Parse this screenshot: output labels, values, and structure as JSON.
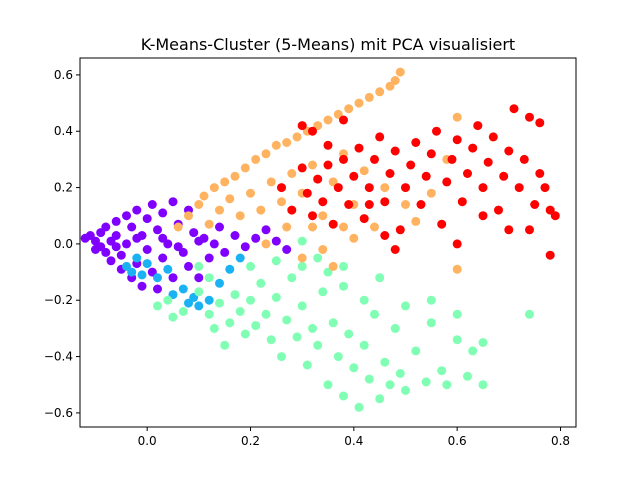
{
  "chart_data": {
    "type": "scatter",
    "title": "K-Means-Cluster (5-Means) mit PCA visualisiert",
    "xlabel": "",
    "ylabel": "",
    "xlim": [
      -0.13,
      0.83
    ],
    "ylim": [
      -0.65,
      0.66
    ],
    "x_ticks": [
      0.0,
      0.2,
      0.4,
      0.6,
      0.8
    ],
    "x_tick_labels": [
      "0.0",
      "0.2",
      "0.4",
      "0.6",
      "0.8"
    ],
    "y_ticks": [
      -0.6,
      -0.4,
      -0.2,
      0.0,
      0.2,
      0.4,
      0.6
    ],
    "y_tick_labels": [
      "−0.6",
      "−0.4",
      "−0.2",
      "0.0",
      "0.2",
      "0.4",
      "0.6"
    ],
    "grid": false,
    "legend": "none",
    "series": [
      {
        "color": "#8000ff",
        "points": [
          [
            -0.12,
            0.02
          ],
          [
            -0.11,
            0.03
          ],
          [
            -0.1,
            0.01
          ],
          [
            -0.1,
            -0.02
          ],
          [
            -0.09,
            0.04
          ],
          [
            -0.08,
            0.06
          ],
          [
            -0.08,
            -0.03
          ],
          [
            -0.07,
            0.01
          ],
          [
            -0.07,
            -0.06
          ],
          [
            -0.06,
            0.08
          ],
          [
            -0.06,
            0.03
          ],
          [
            -0.05,
            -0.04
          ],
          [
            -0.05,
            -0.09
          ],
          [
            -0.04,
            0.1
          ],
          [
            -0.04,
            0.0
          ],
          [
            -0.03,
            0.06
          ],
          [
            -0.03,
            -0.12
          ],
          [
            -0.02,
            0.12
          ],
          [
            -0.02,
            -0.07
          ],
          [
            -0.01,
            0.03
          ],
          [
            -0.01,
            -0.15
          ],
          [
            0.0,
            0.09
          ],
          [
            0.0,
            -0.02
          ],
          [
            0.01,
            0.14
          ],
          [
            0.01,
            -0.1
          ],
          [
            0.02,
            0.05
          ],
          [
            0.02,
            -0.16
          ],
          [
            0.03,
            0.11
          ],
          [
            0.03,
            -0.05
          ],
          [
            0.04,
            0.0
          ],
          [
            0.05,
            0.15
          ],
          [
            0.05,
            -0.12
          ],
          [
            0.06,
            0.07
          ],
          [
            0.07,
            -0.03
          ],
          [
            0.08,
            0.12
          ],
          [
            0.08,
            -0.08
          ],
          [
            0.09,
            0.04
          ],
          [
            0.1,
            -0.12
          ],
          [
            0.11,
            0.02
          ],
          [
            0.12,
            -0.05
          ],
          [
            0.13,
            0.0
          ],
          [
            0.14,
            0.06
          ],
          [
            0.15,
            -0.03
          ],
          [
            0.17,
            0.03
          ],
          [
            0.19,
            -0.01
          ],
          [
            0.21,
            0.02
          ],
          [
            0.23,
            0.05
          ],
          [
            0.25,
            0.01
          ],
          [
            0.27,
            -0.02
          ],
          [
            -0.09,
            -0.01
          ],
          [
            -0.06,
            -0.01
          ],
          [
            -0.02,
            0.02
          ],
          [
            0.03,
            0.02
          ],
          [
            0.06,
            -0.01
          ],
          [
            0.1,
            0.01
          ]
        ]
      },
      {
        "color": "#1ab2f2",
        "points": [
          [
            -0.04,
            -0.08
          ],
          [
            -0.03,
            -0.1
          ],
          [
            -0.02,
            -0.05
          ],
          [
            -0.01,
            -0.11
          ],
          [
            0.0,
            -0.07
          ],
          [
            0.02,
            -0.12
          ],
          [
            0.04,
            -0.09
          ],
          [
            0.05,
            -0.18
          ],
          [
            0.07,
            -0.16
          ],
          [
            0.08,
            -0.21
          ],
          [
            0.09,
            -0.19
          ],
          [
            0.1,
            -0.22
          ],
          [
            0.12,
            -0.2
          ],
          [
            0.14,
            -0.14
          ],
          [
            0.16,
            -0.09
          ],
          [
            0.18,
            -0.05
          ]
        ]
      },
      {
        "color": "#80ffb4",
        "points": [
          [
            0.02,
            -0.22
          ],
          [
            0.04,
            -0.2
          ],
          [
            0.05,
            -0.26
          ],
          [
            0.07,
            -0.24
          ],
          [
            0.1,
            -0.17
          ],
          [
            0.12,
            -0.25
          ],
          [
            0.13,
            -0.3
          ],
          [
            0.14,
            -0.21
          ],
          [
            0.15,
            -0.36
          ],
          [
            0.16,
            -0.28
          ],
          [
            0.17,
            -0.18
          ],
          [
            0.18,
            -0.24
          ],
          [
            0.19,
            -0.32
          ],
          [
            0.2,
            -0.2
          ],
          [
            0.21,
            -0.29
          ],
          [
            0.22,
            -0.14
          ],
          [
            0.23,
            -0.25
          ],
          [
            0.24,
            -0.34
          ],
          [
            0.25,
            -0.19
          ],
          [
            0.26,
            -0.4
          ],
          [
            0.27,
            -0.27
          ],
          [
            0.28,
            -0.12
          ],
          [
            0.29,
            -0.33
          ],
          [
            0.3,
            -0.22
          ],
          [
            0.31,
            -0.43
          ],
          [
            0.32,
            -0.3
          ],
          [
            0.33,
            -0.36
          ],
          [
            0.34,
            -0.17
          ],
          [
            0.35,
            -0.5
          ],
          [
            0.36,
            -0.28
          ],
          [
            0.37,
            -0.4
          ],
          [
            0.38,
            -0.54
          ],
          [
            0.39,
            -0.32
          ],
          [
            0.4,
            -0.44
          ],
          [
            0.41,
            -0.58
          ],
          [
            0.42,
            -0.36
          ],
          [
            0.43,
            -0.48
          ],
          [
            0.44,
            -0.25
          ],
          [
            0.45,
            -0.55
          ],
          [
            0.46,
            -0.42
          ],
          [
            0.47,
            -0.5
          ],
          [
            0.48,
            -0.3
          ],
          [
            0.49,
            -0.46
          ],
          [
            0.5,
            -0.52
          ],
          [
            0.52,
            -0.38
          ],
          [
            0.54,
            -0.49
          ],
          [
            0.55,
            -0.28
          ],
          [
            0.57,
            -0.45
          ],
          [
            0.58,
            -0.5
          ],
          [
            0.6,
            -0.34
          ],
          [
            0.62,
            -0.47
          ],
          [
            0.63,
            -0.38
          ],
          [
            0.65,
            -0.35
          ],
          [
            0.65,
            -0.5
          ],
          [
            0.74,
            -0.25
          ],
          [
            0.1,
            -0.08
          ],
          [
            0.12,
            -0.12
          ],
          [
            0.2,
            -0.08
          ],
          [
            0.25,
            -0.06
          ],
          [
            0.3,
            -0.08
          ],
          [
            0.35,
            -0.1
          ],
          [
            0.38,
            -0.15
          ],
          [
            0.42,
            -0.2
          ],
          [
            0.45,
            -0.12
          ],
          [
            0.5,
            -0.22
          ],
          [
            0.55,
            -0.2
          ],
          [
            0.6,
            -0.25
          ],
          [
            0.38,
            -0.08
          ],
          [
            0.33,
            -0.05
          ],
          [
            0.3,
            0.01
          ]
        ]
      },
      {
        "color": "#ffb360",
        "points": [
          [
            0.06,
            0.06
          ],
          [
            0.08,
            0.1
          ],
          [
            0.1,
            0.14
          ],
          [
            0.11,
            0.17
          ],
          [
            0.12,
            0.07
          ],
          [
            0.13,
            0.2
          ],
          [
            0.14,
            0.12
          ],
          [
            0.15,
            0.22
          ],
          [
            0.16,
            0.16
          ],
          [
            0.17,
            0.24
          ],
          [
            0.18,
            0.1
          ],
          [
            0.19,
            0.27
          ],
          [
            0.2,
            0.18
          ],
          [
            0.21,
            0.3
          ],
          [
            0.22,
            0.12
          ],
          [
            0.23,
            0.32
          ],
          [
            0.24,
            0.22
          ],
          [
            0.25,
            0.35
          ],
          [
            0.26,
            0.15
          ],
          [
            0.27,
            0.36
          ],
          [
            0.28,
            0.25
          ],
          [
            0.29,
            0.38
          ],
          [
            0.3,
            0.18
          ],
          [
            0.31,
            0.4
          ],
          [
            0.32,
            0.28
          ],
          [
            0.33,
            0.42
          ],
          [
            0.34,
            0.1
          ],
          [
            0.35,
            0.44
          ],
          [
            0.36,
            0.22
          ],
          [
            0.37,
            0.46
          ],
          [
            0.38,
            0.32
          ],
          [
            0.39,
            0.48
          ],
          [
            0.4,
            0.14
          ],
          [
            0.41,
            0.5
          ],
          [
            0.42,
            0.26
          ],
          [
            0.43,
            0.52
          ],
          [
            0.44,
            0.06
          ],
          [
            0.45,
            0.54
          ],
          [
            0.46,
            0.2
          ],
          [
            0.47,
            0.56
          ],
          [
            0.48,
            0.58
          ],
          [
            0.49,
            0.61
          ],
          [
            0.5,
            0.14
          ],
          [
            0.52,
            0.08
          ],
          [
            0.55,
            0.18
          ],
          [
            0.58,
            0.3
          ],
          [
            0.6,
            -0.09
          ],
          [
            0.6,
            0.45
          ],
          [
            0.34,
            -0.02
          ],
          [
            0.3,
            -0.05
          ],
          [
            0.36,
            -0.08
          ],
          [
            0.4,
            0.02
          ],
          [
            0.32,
            0.06
          ],
          [
            0.27,
            0.06
          ],
          [
            0.23,
            0.0
          ],
          [
            0.38,
            0.06
          ]
        ]
      },
      {
        "color": "#ff0000",
        "points": [
          [
            0.26,
            0.2
          ],
          [
            0.28,
            0.12
          ],
          [
            0.3,
            0.27
          ],
          [
            0.31,
            0.18
          ],
          [
            0.32,
            0.1
          ],
          [
            0.33,
            0.23
          ],
          [
            0.34,
            0.15
          ],
          [
            0.35,
            0.28
          ],
          [
            0.36,
            0.07
          ],
          [
            0.37,
            0.2
          ],
          [
            0.38,
            0.3
          ],
          [
            0.39,
            0.14
          ],
          [
            0.4,
            0.24
          ],
          [
            0.41,
            0.34
          ],
          [
            0.42,
            0.09
          ],
          [
            0.43,
            0.2
          ],
          [
            0.44,
            0.3
          ],
          [
            0.45,
            0.38
          ],
          [
            0.46,
            0.15
          ],
          [
            0.47,
            0.25
          ],
          [
            0.48,
            0.33
          ],
          [
            0.49,
            0.05
          ],
          [
            0.5,
            0.2
          ],
          [
            0.51,
            0.28
          ],
          [
            0.52,
            0.36
          ],
          [
            0.53,
            0.14
          ],
          [
            0.54,
            0.24
          ],
          [
            0.55,
            0.32
          ],
          [
            0.56,
            0.4
          ],
          [
            0.57,
            0.07
          ],
          [
            0.58,
            0.22
          ],
          [
            0.59,
            0.3
          ],
          [
            0.6,
            0.37
          ],
          [
            0.61,
            0.15
          ],
          [
            0.62,
            0.25
          ],
          [
            0.63,
            0.34
          ],
          [
            0.64,
            0.42
          ],
          [
            0.65,
            0.2
          ],
          [
            0.66,
            0.29
          ],
          [
            0.67,
            0.38
          ],
          [
            0.68,
            0.12
          ],
          [
            0.69,
            0.24
          ],
          [
            0.7,
            0.33
          ],
          [
            0.71,
            0.48
          ],
          [
            0.72,
            0.2
          ],
          [
            0.73,
            0.3
          ],
          [
            0.74,
            0.45
          ],
          [
            0.75,
            0.14
          ],
          [
            0.76,
            0.43
          ],
          [
            0.77,
            0.2
          ],
          [
            0.78,
            0.12
          ],
          [
            0.78,
            -0.04
          ],
          [
            0.79,
            0.1
          ],
          [
            0.3,
            0.42
          ],
          [
            0.32,
            0.4
          ],
          [
            0.35,
            0.35
          ],
          [
            0.38,
            0.44
          ],
          [
            0.43,
            0.14
          ],
          [
            0.46,
            0.03
          ],
          [
            0.48,
            -0.02
          ],
          [
            0.6,
            0.0
          ],
          [
            0.65,
            0.1
          ],
          [
            0.7,
            0.05
          ],
          [
            0.74,
            0.05
          ],
          [
            0.76,
            0.25
          ]
        ]
      }
    ]
  }
}
